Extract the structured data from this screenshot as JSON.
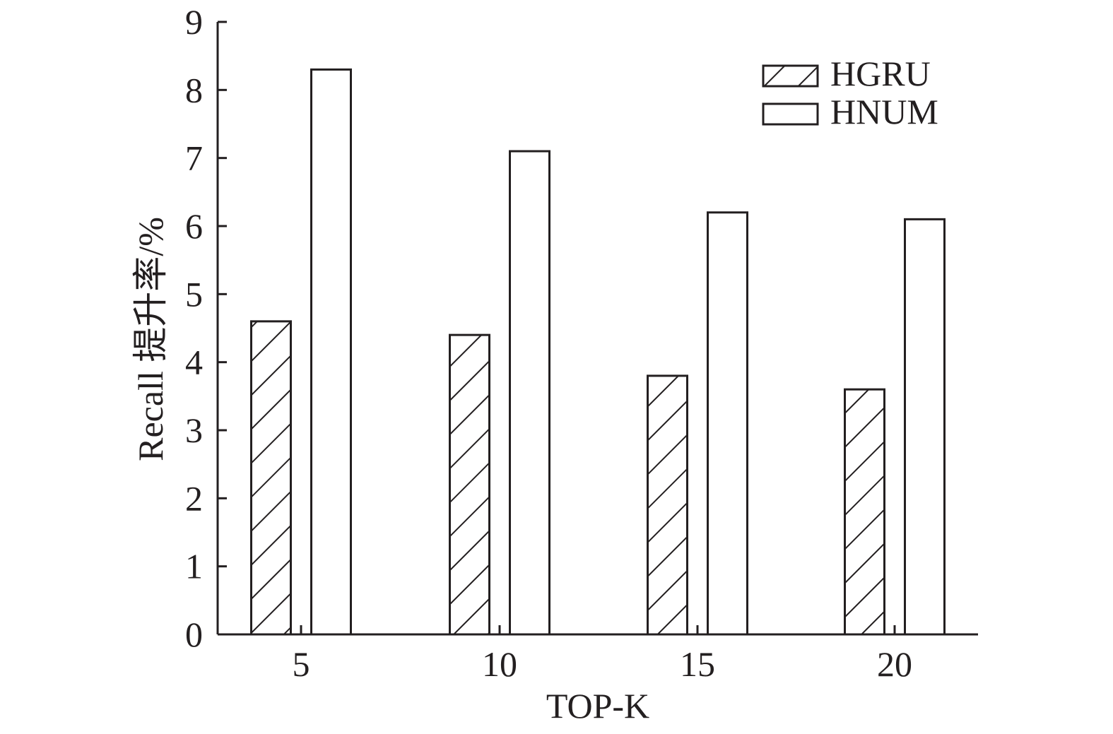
{
  "chart_data": {
    "type": "bar",
    "categories": [
      "5",
      "10",
      "15",
      "20"
    ],
    "series": [
      {
        "name": "HGRU",
        "values": [
          4.6,
          4.4,
          3.8,
          3.6
        ],
        "fill": "hatch"
      },
      {
        "name": "HNUM",
        "values": [
          8.3,
          7.1,
          6.2,
          6.1
        ],
        "fill": "white"
      }
    ],
    "xlabel": "TOP-K",
    "ylabel": "Recall 提升率/%",
    "ylim": [
      0,
      9
    ],
    "yticks": [
      "0",
      "1",
      "2",
      "3",
      "4",
      "5",
      "6",
      "7",
      "8",
      "9"
    ],
    "grid": false,
    "legend_position": "top-right",
    "colors": {
      "stroke": "#231f20",
      "background": "#ffffff"
    }
  }
}
